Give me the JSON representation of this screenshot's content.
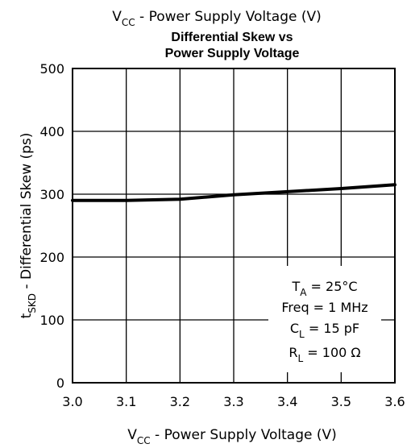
{
  "chart_data": {
    "type": "line",
    "top_label": {
      "main": "V",
      "sub": "CC",
      "rest": " - Power Supply Voltage (V)"
    },
    "title_lines": [
      "Differential Skew vs",
      "Power Supply Voltage"
    ],
    "xlabel": {
      "main": "V",
      "sub": "CC",
      "rest": " - Power Supply Voltage (V)"
    },
    "ylabel": {
      "main": "t",
      "sub": "SKD",
      "rest": " - Differential Skew (ps)"
    },
    "xlim": [
      3.0,
      3.6
    ],
    "ylim": [
      0,
      500
    ],
    "x_ticks": [
      "3.0",
      "3.1",
      "3.2",
      "3.3",
      "3.4",
      "3.5",
      "3.6"
    ],
    "y_ticks": [
      "0",
      "100",
      "200",
      "300",
      "400",
      "500"
    ],
    "grid": true,
    "series": [
      {
        "x": [
          3.0,
          3.1,
          3.2,
          3.3,
          3.4,
          3.5,
          3.6
        ],
        "y": [
          290,
          290,
          292,
          299,
          304,
          309,
          315
        ]
      }
    ],
    "annotations": [
      {
        "main": "T",
        "sub": "A",
        "rest": " = 25°C"
      },
      {
        "main": "Freq = 1 MHz",
        "sub": "",
        "rest": ""
      },
      {
        "main": "C",
        "sub": "L",
        "rest": " = 15 pF"
      },
      {
        "main": "R",
        "sub": "L",
        "rest": " = 100 Ω"
      }
    ]
  }
}
